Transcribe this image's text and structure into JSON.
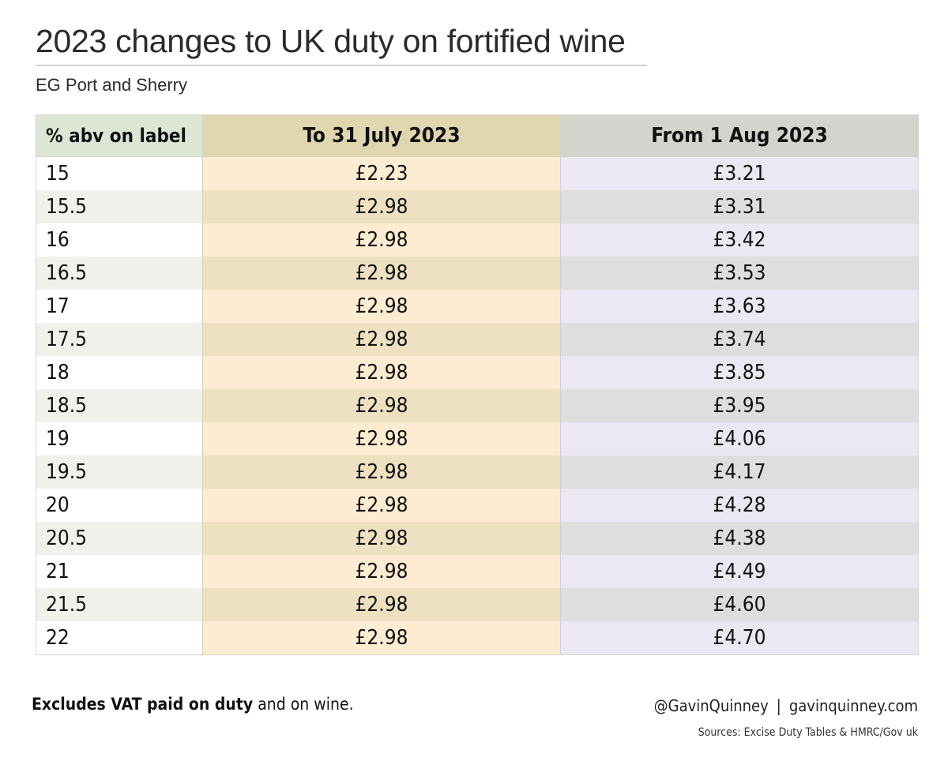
{
  "title": "2023 changes to UK duty on fortified wine",
  "subtitle": "EG Port and Sherry",
  "chart_data": {
    "type": "table",
    "columns": [
      "% abv on label",
      "To 31 July 2023",
      "From 1 Aug 2023"
    ],
    "rows": [
      [
        "15",
        "£2.23",
        "£3.21"
      ],
      [
        "15.5",
        "£2.98",
        "£3.31"
      ],
      [
        "16",
        "£2.98",
        "£3.42"
      ],
      [
        "16.5",
        "£2.98",
        "£3.53"
      ],
      [
        "17",
        "£2.98",
        "£3.63"
      ],
      [
        "17.5",
        "£2.98",
        "£3.74"
      ],
      [
        "18",
        "£2.98",
        "£3.85"
      ],
      [
        "18.5",
        "£2.98",
        "£3.95"
      ],
      [
        "19",
        "£2.98",
        "£4.06"
      ],
      [
        "19.5",
        "£2.98",
        "£4.17"
      ],
      [
        "20",
        "£2.98",
        "£4.28"
      ],
      [
        "20.5",
        "£2.98",
        "£4.38"
      ],
      [
        "21",
        "£2.98",
        "£4.49"
      ],
      [
        "21.5",
        "£2.98",
        "£4.60"
      ],
      [
        "22",
        "£2.98",
        "£4.70"
      ]
    ]
  },
  "footer": {
    "note_bold": "Excludes VAT paid on duty",
    "note_rest": " and on wine.",
    "handle": "@GavinQuinney",
    "separator": "|",
    "website": "gavinquinney.com",
    "sources": "Sources: Excise Duty Tables & HMRC/Gov uk"
  },
  "colors": {
    "col1_header": "#dde6d5",
    "col2_header": "#e0d6b0",
    "col3_header": "#d4d4cf",
    "col2_row": "#fdecd1",
    "col3_row": "#ebe7f3"
  }
}
